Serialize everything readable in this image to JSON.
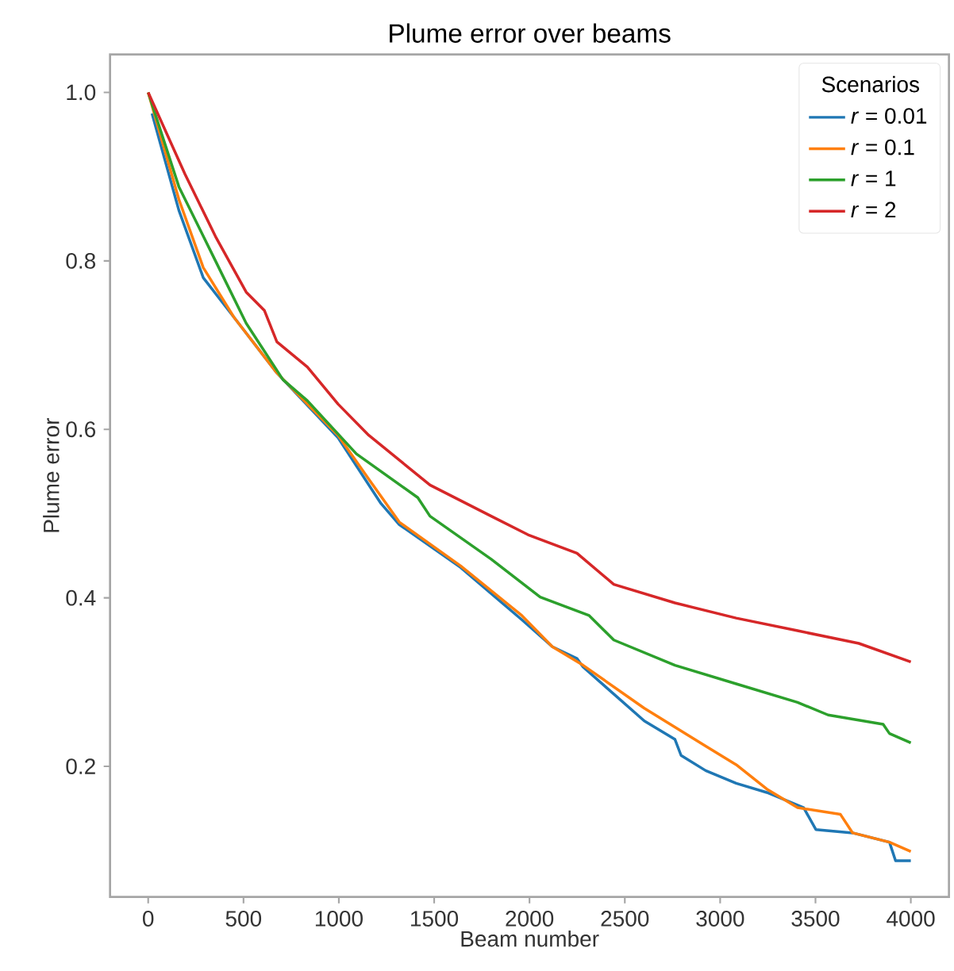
{
  "chart_data": {
    "type": "line",
    "title": "Plume error over beams",
    "xlabel": "Beam number",
    "ylabel": "Plume error",
    "legend_title": "Scenarios",
    "xlim": [
      -200,
      4200
    ],
    "ylim": [
      0.045,
      1.045
    ],
    "xticks": [
      0,
      500,
      1000,
      1500,
      2000,
      2500,
      3000,
      3500,
      4000
    ],
    "yticks": [
      0.2,
      0.4,
      0.6,
      0.8,
      {
        "value": 1,
        "label": "1.0"
      }
    ],
    "grid": false,
    "legend": "top right",
    "line_style": "solid",
    "marker": "none",
    "series": [
      {
        "name": "*r* = 0.01",
        "color": "#1f77b4",
        "x": [
          20,
          161,
          289,
          450,
          675,
          996,
          1221,
          1317,
          1639,
          1960,
          2120,
          2249,
          2281,
          2602,
          2763,
          2795,
          2924,
          3084,
          3245,
          3438,
          3502,
          3695,
          3888,
          3920,
          4000
        ],
        "values": [
          0.975,
          0.86,
          0.78,
          0.733,
          0.667,
          0.59,
          0.512,
          0.487,
          0.436,
          0.374,
          0.342,
          0.328,
          0.318,
          0.254,
          0.232,
          0.213,
          0.195,
          0.18,
          0.169,
          0.151,
          0.125,
          0.121,
          0.11,
          0.088,
          0.088
        ]
      },
      {
        "name": "*r* = 0.1",
        "color": "#ff7f0e",
        "x": [
          0,
          161,
          289,
          450,
          675,
          996,
          1157,
          1317,
          1639,
          1960,
          2120,
          2281,
          2602,
          2924,
          3084,
          3245,
          3406,
          3631,
          3695,
          3888,
          4000
        ],
        "values": [
          1.0,
          0.873,
          0.792,
          0.733,
          0.667,
          0.593,
          0.541,
          0.49,
          0.438,
          0.379,
          0.342,
          0.32,
          0.269,
          0.224,
          0.202,
          0.173,
          0.151,
          0.143,
          0.121,
          0.11,
          0.099
        ]
      },
      {
        "name": "*r* = 1",
        "color": "#2ca02c",
        "x": [
          0,
          161,
          353,
          514,
          707,
          835,
          1092,
          1414,
          1478,
          1799,
          2056,
          2313,
          2442,
          2763,
          3084,
          3406,
          3566,
          3855,
          3888,
          4000
        ],
        "values": [
          1.0,
          0.888,
          0.8,
          0.726,
          0.659,
          0.634,
          0.571,
          0.519,
          0.497,
          0.446,
          0.401,
          0.379,
          0.35,
          0.32,
          0.298,
          0.276,
          0.261,
          0.25,
          0.239,
          0.228
        ]
      },
      {
        "name": "*r* = 2",
        "color": "#d62728",
        "x": [
          0,
          193,
          353,
          514,
          610,
          675,
          835,
          996,
          1157,
          1478,
          1799,
          1992,
          2249,
          2442,
          2763,
          3084,
          3406,
          3727,
          4000
        ],
        "values": [
          1.0,
          0.903,
          0.829,
          0.763,
          0.741,
          0.704,
          0.674,
          0.63,
          0.593,
          0.534,
          0.497,
          0.475,
          0.453,
          0.416,
          0.394,
          0.376,
          0.361,
          0.346,
          0.324
        ]
      }
    ]
  }
}
